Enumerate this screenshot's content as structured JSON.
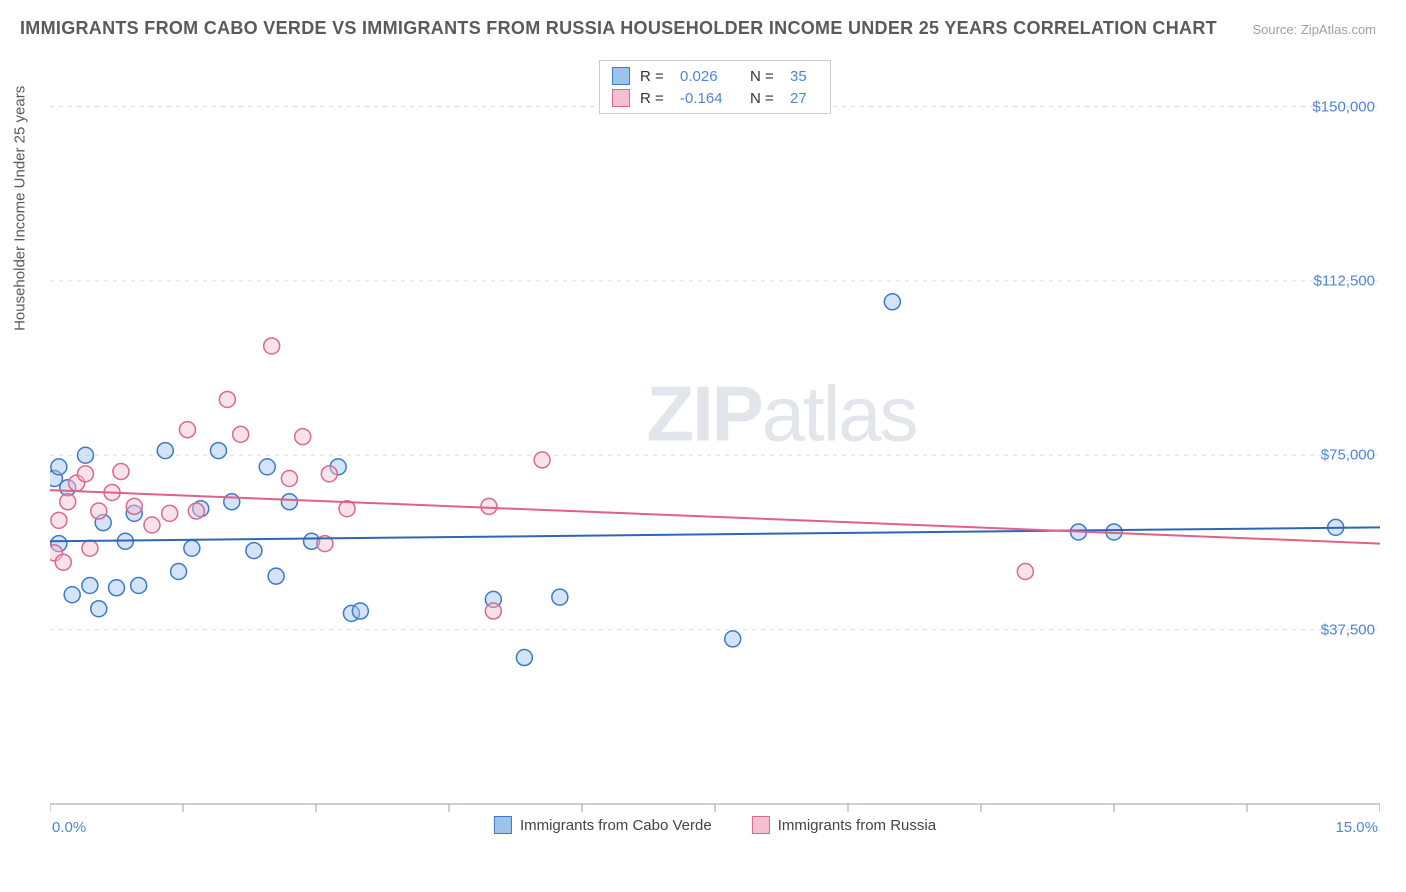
{
  "title": "IMMIGRANTS FROM CABO VERDE VS IMMIGRANTS FROM RUSSIA HOUSEHOLDER INCOME UNDER 25 YEARS CORRELATION CHART",
  "source": "Source: ZipAtlas.com",
  "ylabel": "Householder Income Under 25 years",
  "watermark_a": "ZIP",
  "watermark_b": "atlas",
  "chart": {
    "type": "scatter",
    "xlim": [
      0,
      15
    ],
    "ylim": [
      0,
      160000
    ],
    "x_min_label": "0.0%",
    "x_max_label": "15.0%",
    "y_ticks": [
      37500,
      75000,
      112500,
      150000
    ],
    "y_tick_labels": [
      "$37,500",
      "$75,000",
      "$112,500",
      "$150,000"
    ],
    "x_tick_positions": [
      0,
      1.5,
      3,
      4.5,
      6,
      7.5,
      9,
      10.5,
      12,
      13.5,
      15
    ],
    "grid_color": "#d9dde3",
    "background_color": "#ffffff",
    "point_radius": 8,
    "series": [
      {
        "name": "Immigrants from Cabo Verde",
        "label_key": "cabo_label",
        "fill": "#9ec3ea",
        "stroke": "#3e79c6",
        "R": "0.026",
        "N": "35",
        "trend": {
          "y_at_xmin": 56500,
          "y_at_xmax": 59500,
          "color": "#2d66b8",
          "width": 2
        },
        "points": [
          [
            0.05,
            70000
          ],
          [
            0.1,
            72500
          ],
          [
            0.1,
            56000
          ],
          [
            0.2,
            68000
          ],
          [
            0.25,
            45000
          ],
          [
            0.4,
            75000
          ],
          [
            0.45,
            47000
          ],
          [
            0.55,
            42000
          ],
          [
            0.6,
            60500
          ],
          [
            0.75,
            46500
          ],
          [
            0.85,
            56500
          ],
          [
            0.95,
            62500
          ],
          [
            1.0,
            47000
          ],
          [
            1.3,
            76000
          ],
          [
            1.45,
            50000
          ],
          [
            1.6,
            55000
          ],
          [
            1.7,
            63500
          ],
          [
            1.9,
            76000
          ],
          [
            2.05,
            65000
          ],
          [
            2.3,
            54500
          ],
          [
            2.45,
            72500
          ],
          [
            2.55,
            49000
          ],
          [
            2.7,
            65000
          ],
          [
            2.95,
            56500
          ],
          [
            3.25,
            72500
          ],
          [
            3.4,
            41000
          ],
          [
            3.5,
            41500
          ],
          [
            5.0,
            44000
          ],
          [
            5.35,
            31500
          ],
          [
            5.75,
            44500
          ],
          [
            7.7,
            35500
          ],
          [
            9.5,
            108000
          ],
          [
            11.6,
            58500
          ],
          [
            12.0,
            58500
          ],
          [
            14.5,
            59500
          ]
        ]
      },
      {
        "name": "Immigrants from Russia",
        "label_key": "russia_label",
        "fill": "#f4bfce",
        "stroke": "#d96893",
        "R": "-0.164",
        "N": "27",
        "trend": {
          "y_at_xmin": 67500,
          "y_at_xmax": 56000,
          "color": "#e06088",
          "width": 2
        },
        "points": [
          [
            0.05,
            54000
          ],
          [
            0.1,
            61000
          ],
          [
            0.15,
            52000
          ],
          [
            0.2,
            65000
          ],
          [
            0.3,
            69000
          ],
          [
            0.4,
            71000
          ],
          [
            0.45,
            55000
          ],
          [
            0.55,
            63000
          ],
          [
            0.7,
            67000
          ],
          [
            0.8,
            71500
          ],
          [
            0.95,
            64000
          ],
          [
            1.15,
            60000
          ],
          [
            1.35,
            62500
          ],
          [
            1.55,
            80500
          ],
          [
            1.65,
            63000
          ],
          [
            2.0,
            87000
          ],
          [
            2.15,
            79500
          ],
          [
            2.5,
            98500
          ],
          [
            2.7,
            70000
          ],
          [
            2.85,
            79000
          ],
          [
            3.1,
            56000
          ],
          [
            3.15,
            71000
          ],
          [
            3.35,
            63500
          ],
          [
            4.95,
            64000
          ],
          [
            5.0,
            41500
          ],
          [
            5.55,
            74000
          ],
          [
            11.0,
            50000
          ]
        ]
      }
    ]
  },
  "legend_bottom": {
    "cabo_label": "Immigrants from Cabo Verde",
    "russia_label": "Immigrants from Russia"
  },
  "legend_top": {
    "r_prefix": "R  =",
    "n_prefix": "N  ="
  }
}
